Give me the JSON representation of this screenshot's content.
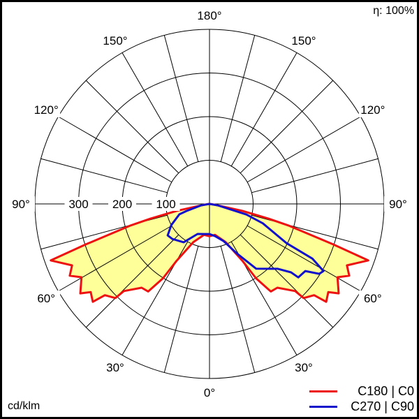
{
  "chart_data": {
    "type": "polar",
    "title": "",
    "efficiency_label": "η: 100%",
    "unit_label": "cd/klm",
    "radial_ticks": [
      100,
      200,
      300
    ],
    "radial_max": 400,
    "angle_step": 15,
    "angle_labels_left": [
      "0°",
      "30°",
      "60°",
      "90°",
      "120°",
      "150°",
      "180°"
    ],
    "angle_labels_right": [
      "30°",
      "60°",
      "90°",
      "120°",
      "150°"
    ],
    "angle_label_values_left": [
      0,
      30,
      60,
      90,
      120,
      150,
      180
    ],
    "angle_label_values_right": [
      30,
      60,
      90,
      120,
      150
    ],
    "fill_color": "#ffff99",
    "grid": true,
    "legend_placement": "bottom-right",
    "series": [
      {
        "name": "C180 | C0",
        "color": "#ee1111",
        "filled": true,
        "left_plane": "C180",
        "right_plane": "C0",
        "left": {
          "gamma": [
            0,
            10,
            20,
            23,
            30,
            32,
            35,
            39,
            44.5,
            45,
            48.9,
            50,
            53.4,
            55.3,
            60.2,
            62.8,
            65.9,
            70.4,
            71.9,
            74.7,
            76,
            78,
            80,
            85,
            90,
            180
          ],
          "intensity": [
            74,
            72,
            88,
            95,
            150,
            201,
            245,
            247,
            280,
            305,
            318,
            349,
            339,
            360,
            338,
            360,
            345,
            386,
            298,
            187,
            140,
            77,
            20,
            5,
            0,
            0
          ]
        },
        "right": {
          "gamma": [
            0,
            10,
            20,
            23,
            30,
            32,
            35,
            39,
            44.5,
            45,
            48.9,
            50,
            53.4,
            55.3,
            60.2,
            62.8,
            65.9,
            70.4,
            71.9,
            74.7,
            76,
            78,
            80,
            85,
            90,
            180
          ],
          "intensity": [
            74,
            72,
            88,
            95,
            150,
            201,
            245,
            247,
            280,
            305,
            318,
            349,
            339,
            360,
            338,
            360,
            345,
            386,
            298,
            187,
            140,
            77,
            20,
            5,
            0,
            0
          ]
        }
      },
      {
        "name": "C270 | C90",
        "color": "#1111cc",
        "filled": false,
        "left_plane": "C270",
        "right_plane": "C90",
        "left": {
          "gamma": [
            0,
            10,
            21.6,
            34,
            46.7,
            53,
            61,
            71,
            73,
            80,
            90,
            180
          ],
          "intensity": [
            69,
            70,
            74,
            106,
            117,
            120,
            100,
            73,
            55,
            20,
            0,
            0
          ]
        },
        "right": {
          "gamma": [
            0,
            10,
            20.7,
            29,
            35.8,
            46.5,
            50,
            50.4,
            55,
            57.5,
            59.5,
            62,
            63,
            70,
            74,
            80,
            90,
            180
          ],
          "intensity": [
            69,
            75,
            91,
            130,
            183,
            216,
            244,
            264,
            268,
            298,
            303,
            267,
            198,
            130,
            88,
            20,
            0,
            0
          ]
        }
      }
    ]
  }
}
